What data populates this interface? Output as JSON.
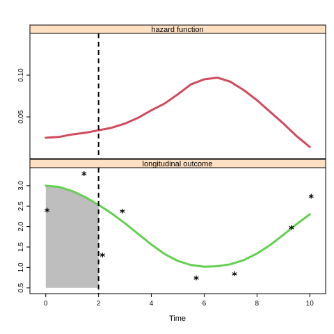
{
  "chart_data": {
    "type": "line",
    "xlabel": "Time",
    "x_ticks": [
      0,
      2,
      4,
      6,
      8,
      10
    ],
    "x_tick_labels": [
      "0",
      "2",
      "4",
      "6",
      "8",
      "10"
    ],
    "xlim": [
      -0.6,
      10.6
    ],
    "reference_line": {
      "x": 2,
      "style": "dashed",
      "color": "#000000"
    },
    "strip_color": "#ffe0c2",
    "panels": [
      {
        "id": "hazard",
        "strip_label": "hazard function",
        "ylim": [
          0.0,
          0.15
        ],
        "y_ticks": [
          0.05,
          0.1
        ],
        "y_tick_labels": [
          "0.05",
          "0.10"
        ],
        "series": [
          {
            "color": "#d1495b",
            "x": [
              0,
              0.5,
              1,
              1.5,
              2,
              2.5,
              3,
              3.5,
              4,
              4.5,
              5,
              5.5,
              6,
              6.5,
              7,
              7.5,
              8,
              8.5,
              9,
              9.5,
              10
            ],
            "y": [
              0.025,
              0.026,
              0.029,
              0.031,
              0.034,
              0.037,
              0.042,
              0.049,
              0.058,
              0.066,
              0.077,
              0.089,
              0.095,
              0.097,
              0.092,
              0.082,
              0.07,
              0.056,
              0.042,
              0.027,
              0.014
            ]
          }
        ]
      },
      {
        "id": "longitudinal",
        "strip_label": "longitudinal outcome",
        "ylim": [
          0.36,
          3.44
        ],
        "y_ticks": [
          0.5,
          1.0,
          1.5,
          2.0,
          2.5,
          3.0
        ],
        "y_tick_labels": [
          "0.5",
          "1.0",
          "1.5",
          "2.0",
          "2.5",
          "3.0"
        ],
        "shade": {
          "x_from": 0,
          "x_to": 2,
          "y_base": 0.5,
          "color": "#bebebe"
        },
        "series": [
          {
            "color": "#61d04f",
            "x": [
              0,
              0.5,
              1,
              1.5,
              2,
              2.5,
              3,
              3.5,
              4,
              4.5,
              5,
              5.5,
              6,
              6.5,
              7,
              7.5,
              8,
              8.5,
              9,
              9.5,
              10
            ],
            "y": [
              3.0,
              2.97,
              2.87,
              2.72,
              2.53,
              2.32,
              2.08,
              1.82,
              1.56,
              1.33,
              1.16,
              1.06,
              1.02,
              1.03,
              1.08,
              1.18,
              1.34,
              1.55,
              1.8,
              2.06,
              2.3
            ]
          }
        ],
        "observations": {
          "x": [
            0.05,
            1.45,
            2.15,
            2.9,
            5.7,
            7.15,
            9.3,
            10.05
          ],
          "y": [
            2.38,
            3.27,
            1.28,
            2.35,
            0.72,
            0.82,
            1.95,
            2.72
          ],
          "marker": "*"
        }
      }
    ]
  }
}
